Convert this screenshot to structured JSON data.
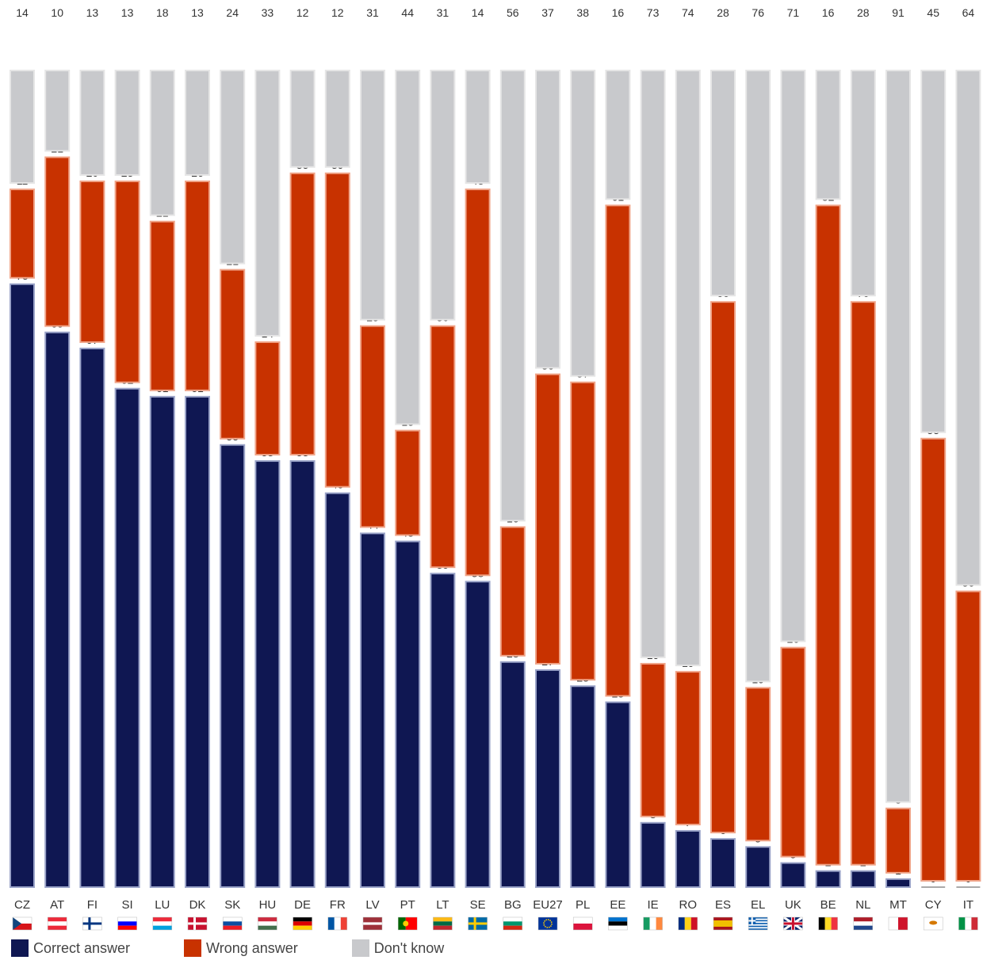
{
  "chart_data": {
    "type": "bar",
    "stacked": true,
    "orientation": "vertical",
    "categories": [
      "CZ",
      "AT",
      "FI",
      "SI",
      "LU",
      "DK",
      "SK",
      "HU",
      "DE",
      "FR",
      "LV",
      "PT",
      "LT",
      "SE",
      "BG",
      "EU27",
      "PL",
      "EE",
      "IE",
      "RO",
      "ES",
      "EL",
      "UK",
      "BE",
      "NL",
      "MT",
      "CY",
      "IT"
    ],
    "series": [
      {
        "name": "Correct answer",
        "color": "#0f1752",
        "values": [
          75,
          69,
          67,
          62,
          61,
          61,
          55,
          53,
          53,
          49,
          44,
          43,
          39,
          38,
          28,
          27,
          25,
          23,
          8,
          7,
          6,
          5,
          3,
          2,
          2,
          1,
          0,
          0
        ]
      },
      {
        "name": "Wrong answer",
        "color": "#c83200",
        "values": [
          11,
          21,
          20,
          25,
          21,
          26,
          21,
          14,
          35,
          39,
          25,
          13,
          30,
          48,
          16,
          36,
          37,
          61,
          19,
          19,
          66,
          19,
          26,
          82,
          70,
          8,
          55,
          36
        ]
      },
      {
        "name": "Don't know",
        "color": "#c8c9cc",
        "values": [
          14,
          10,
          13,
          13,
          18,
          13,
          24,
          33,
          12,
          12,
          31,
          44,
          31,
          14,
          56,
          37,
          38,
          16,
          73,
          74,
          28,
          76,
          71,
          16,
          28,
          91,
          45,
          64
        ]
      }
    ],
    "ylim": [
      0,
      100
    ],
    "grid": false,
    "legend_position": "bottom-left",
    "flags": [
      "cz-flag-icon",
      "at-flag-icon",
      "fi-flag-icon",
      "si-flag-icon",
      "lu-flag-icon",
      "dk-flag-icon",
      "sk-flag-icon",
      "hu-flag-icon",
      "de-flag-icon",
      "fr-flag-icon",
      "lv-flag-icon",
      "pt-flag-icon",
      "lt-flag-icon",
      "se-flag-icon",
      "bg-flag-icon",
      "eu-flag-icon",
      "pl-flag-icon",
      "ee-flag-icon",
      "ie-flag-icon",
      "ro-flag-icon",
      "es-flag-icon",
      "gr-flag-icon",
      "uk-flag-icon",
      "be-flag-icon",
      "nl-flag-icon",
      "mt-flag-icon",
      "cy-flag-icon",
      "it-flag-icon"
    ]
  },
  "legend": {
    "correct_label": "Correct answer",
    "wrong_label": "Wrong answer",
    "dontknow_label": "Don't know"
  }
}
